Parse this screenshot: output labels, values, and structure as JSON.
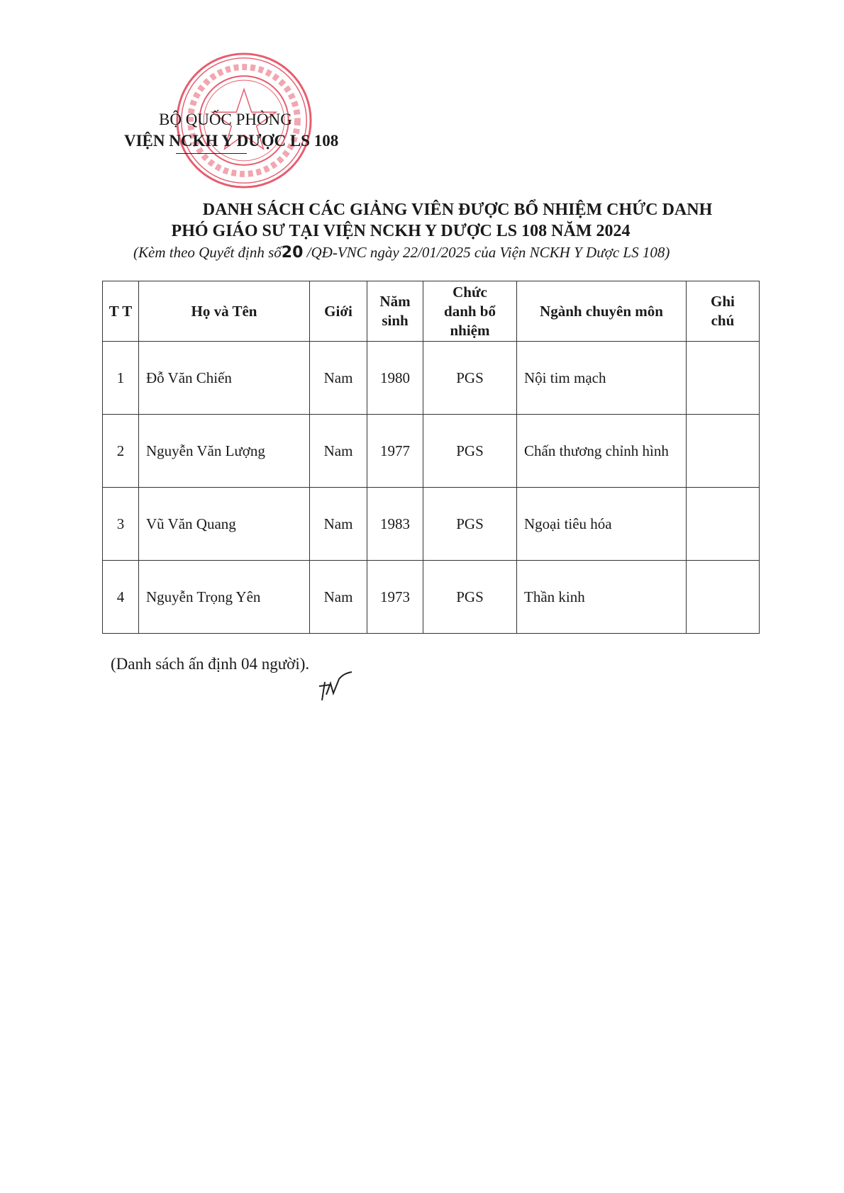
{
  "header": {
    "ministry": "BỘ QUỐC PHÒNG",
    "institute": "VIỆN NCKH Y DƯỢC LS 108",
    "stamp_text": "BỘ QUỐC PHÒNG * VIỆN NGHIÊN CỨU KHOA HỌC Y DƯỢC LÂM SÀNG 108"
  },
  "title": {
    "line1": "DANH SÁCH CÁC GIẢNG VIÊN ĐƯỢC BỔ NHIỆM CHỨC DANH",
    "line2": "PHÓ GIÁO SƯ TẠI VIỆN NCKH Y DƯỢC LS 108 NĂM 2024",
    "sub_prefix": "(Kèm theo Quyết định số",
    "decision_number": "20",
    "sub_suffix": " /QĐ-VNC  ngày 22/01/2025 của Viện NCKH Y Dược LS 108)"
  },
  "table": {
    "headers": [
      "T T",
      "Họ và Tên",
      "Giới",
      "Năm sinh",
      "Chức danh bổ nhiệm",
      "Ngành chuyên môn",
      "Ghi chú"
    ],
    "rows": [
      {
        "tt": "1",
        "name": "Đỗ Văn Chiến",
        "gender": "Nam",
        "year": "1980",
        "title": "PGS",
        "field": "Nội tim mạch",
        "note": ""
      },
      {
        "tt": "2",
        "name": "Nguyễn Văn Lượng",
        "gender": "Nam",
        "year": "1977",
        "title": "PGS",
        "field": "Chấn thương chỉnh hình",
        "note": ""
      },
      {
        "tt": "3",
        "name": "Vũ Văn Quang",
        "gender": "Nam",
        "year": "1983",
        "title": "PGS",
        "field": "Ngoại tiêu hóa",
        "note": ""
      },
      {
        "tt": "4",
        "name": "Nguyễn Trọng Yên",
        "gender": "Nam",
        "year": "1973",
        "title": "PGS",
        "field": "Thần kinh",
        "note": ""
      }
    ]
  },
  "footer": {
    "note": "(Danh sách ấn định 04 người)."
  },
  "colors": {
    "stamp": "#e0344a",
    "text": "#1a1a1a"
  }
}
